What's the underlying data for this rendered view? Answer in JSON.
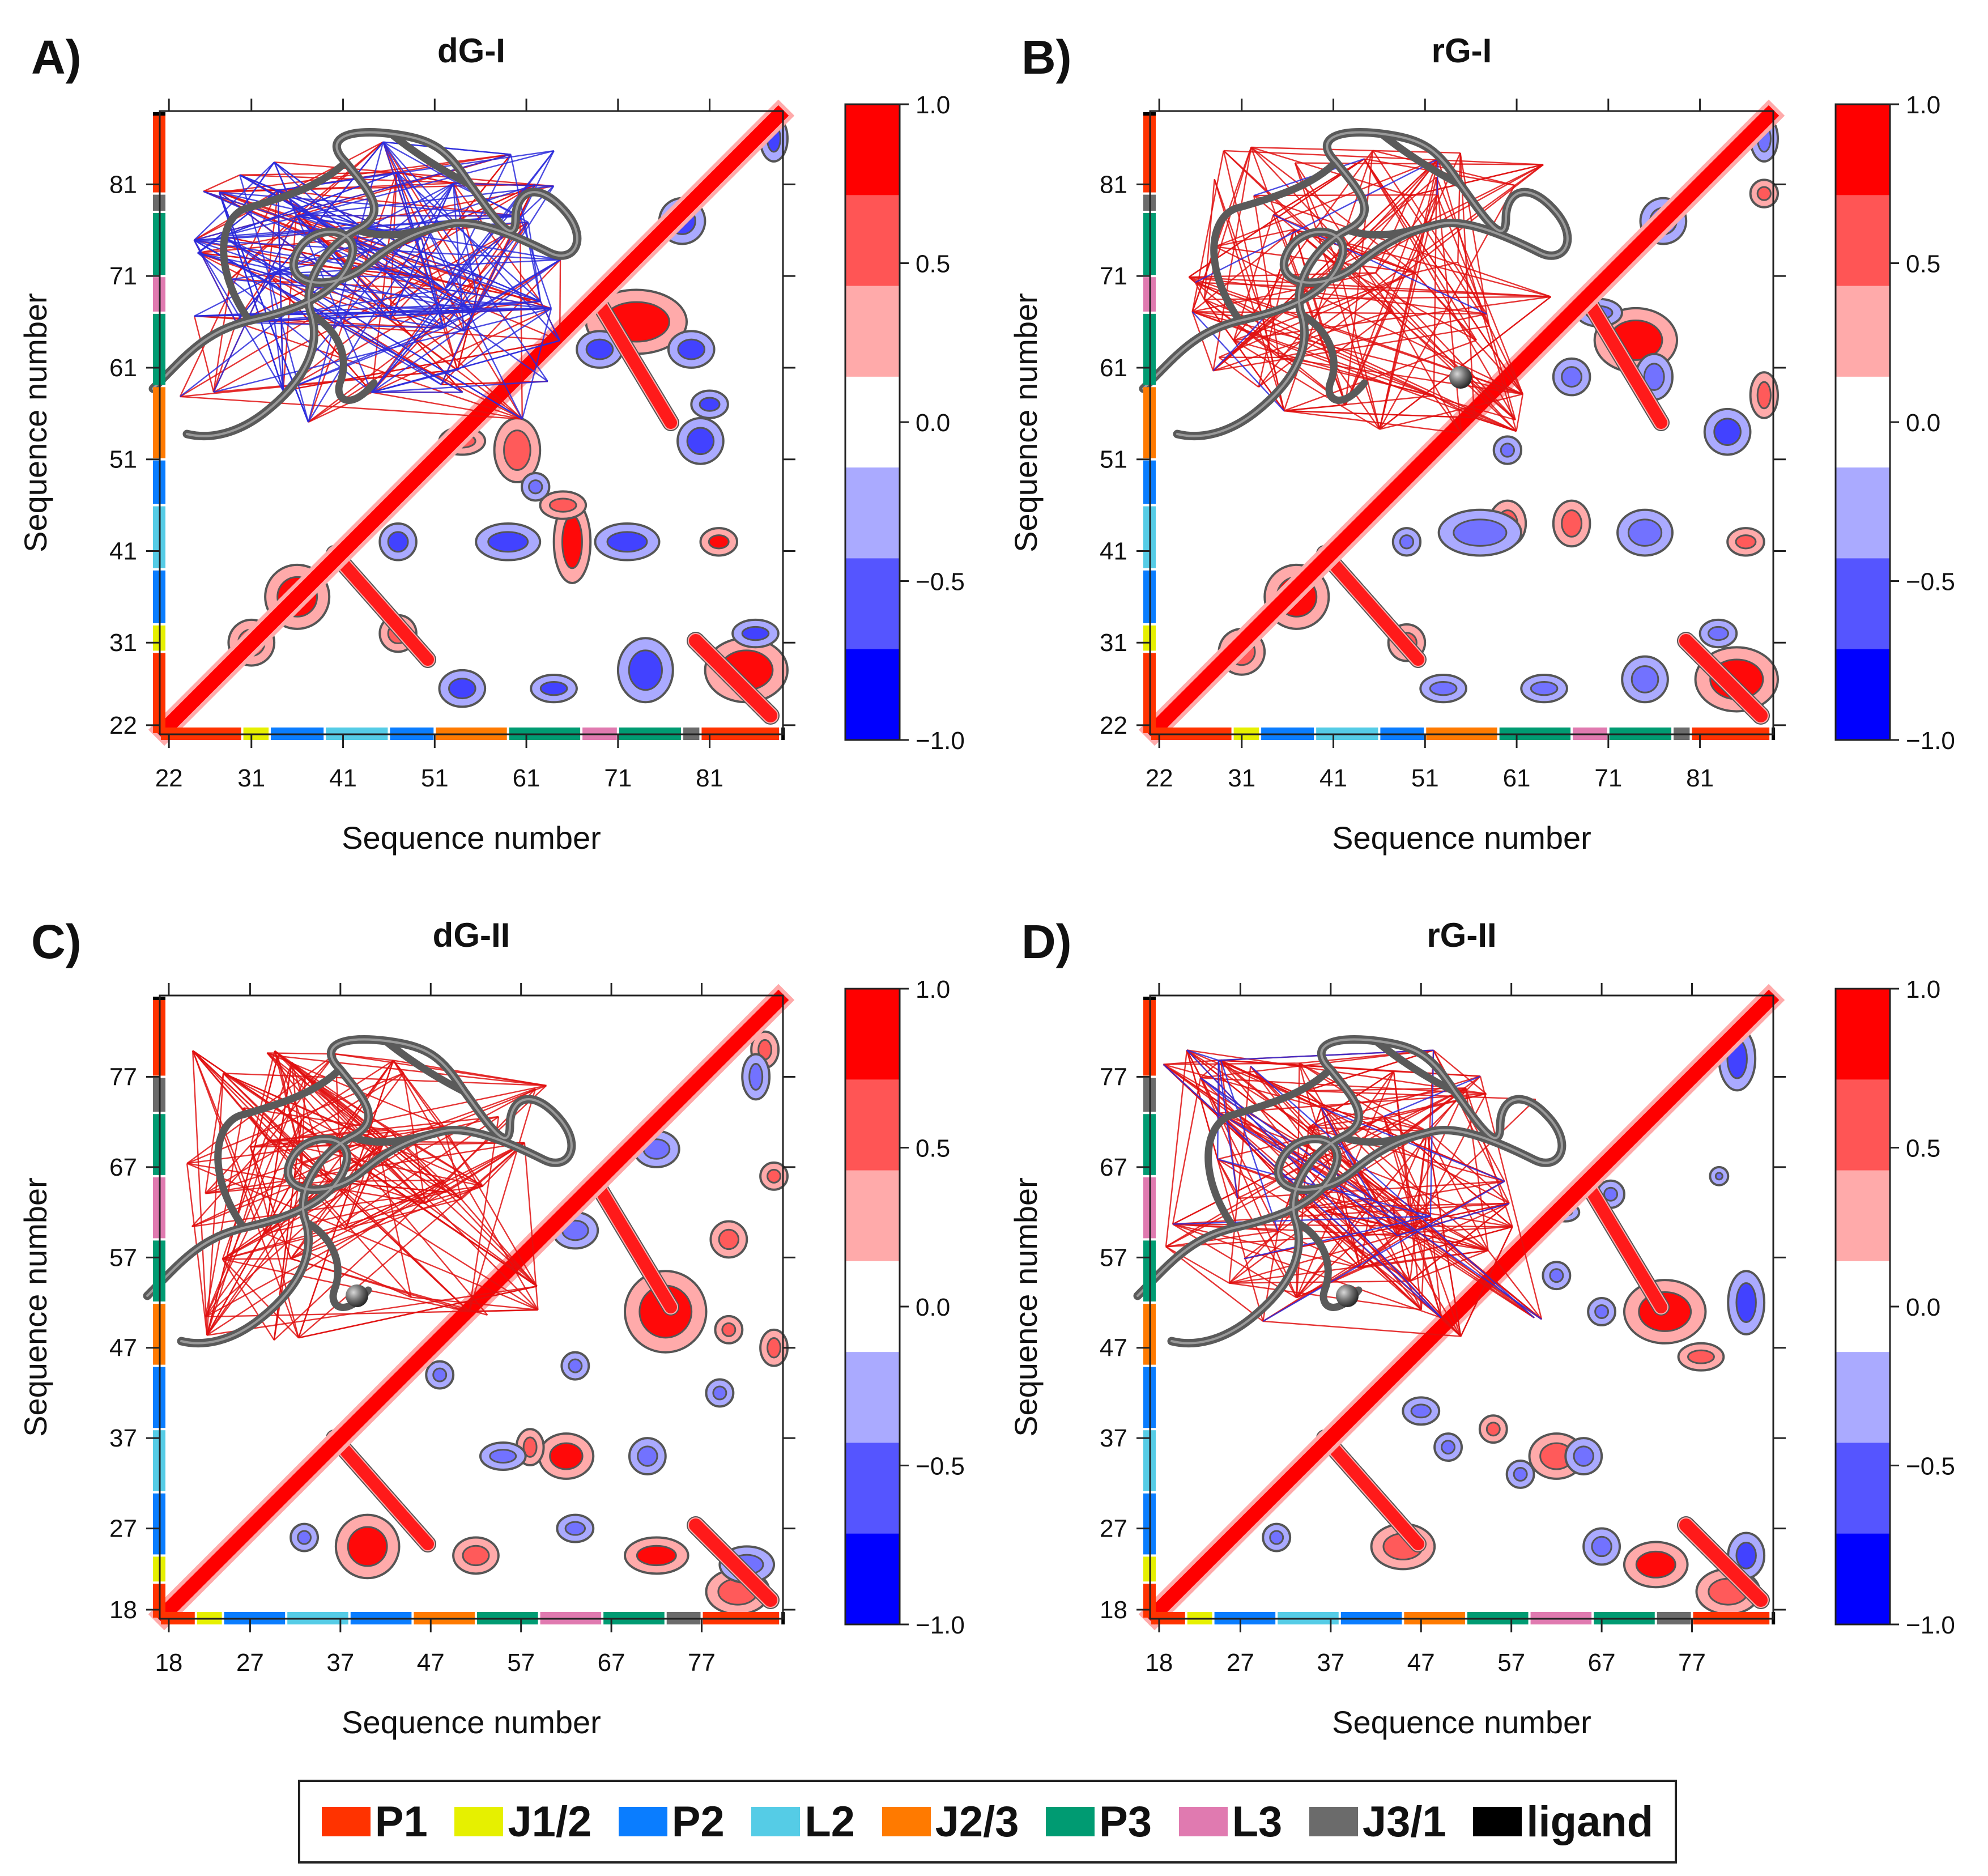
{
  "figure": {
    "legend": [
      {
        "label": "P1",
        "color": "#FF3300"
      },
      {
        "label": "J1/2",
        "color": "#E6F000"
      },
      {
        "label": "P2",
        "color": "#0A7DFF"
      },
      {
        "label": "L2",
        "color": "#55CCE6"
      },
      {
        "label": "J2/3",
        "color": "#FF7A00"
      },
      {
        "label": "P3",
        "color": "#009B72"
      },
      {
        "label": "L3",
        "color": "#E07AB0"
      },
      {
        "label": "J3/1",
        "color": "#6B6B6B"
      },
      {
        "label": "ligand",
        "color": "#000000"
      }
    ],
    "colorbar": {
      "ticks": [
        "1.0",
        "0.5",
        "0.0",
        "−0.5",
        "−1.0"
      ],
      "levels": [
        "#FF0000",
        "#FF5555",
        "#FFAAAA",
        "#FFFFFF",
        "#AAAAFF",
        "#5555FF",
        "#0000FF"
      ]
    },
    "colors": {
      "positive": "#FF2A2A",
      "negative": "#5A5AFF",
      "contour": "#555555",
      "diagonal": "#FF0000"
    }
  },
  "chart_data": [
    {
      "panel_label": "A)",
      "title": "dG-I",
      "type": "heatmap",
      "xlabel": "Sequence number",
      "ylabel": "Sequence number",
      "range": [
        21,
        89
      ],
      "ticks": [
        22,
        31,
        41,
        51,
        61,
        71,
        81
      ],
      "region_x": [
        "P1",
        "J1/2",
        "P2",
        "L2",
        "P2",
        "J2/3",
        "P3",
        "L3",
        "P3",
        "J3/1",
        "P1",
        "ligand"
      ],
      "region_y": [
        "P1",
        "J1/2",
        "P2",
        "L2",
        "P2",
        "J2/3",
        "P3",
        "L3",
        "P3",
        "J3/1",
        "P1",
        "ligand"
      ],
      "region_breaks": [
        21,
        30,
        33,
        39,
        46,
        51,
        59,
        67,
        71,
        78,
        80,
        88.7,
        89
      ],
      "structure_lines": {
        "red": 120,
        "blue": 150
      },
      "blobs": [
        {
          "x": 73,
          "y": 66,
          "rx": 5,
          "ry": 3,
          "v": 0.85
        },
        {
          "x": 85,
          "y": 28,
          "rx": 4,
          "ry": 3,
          "v": 0.85
        },
        {
          "x": 36,
          "y": 36,
          "rx": 3,
          "ry": 3,
          "v": 0.85
        },
        {
          "x": 31,
          "y": 31,
          "rx": 2,
          "ry": 2,
          "v": 0.7
        },
        {
          "x": 60,
          "y": 52,
          "rx": 2,
          "ry": 3,
          "v": 0.7
        },
        {
          "x": 47,
          "y": 32,
          "rx": 1.5,
          "ry": 1.5,
          "v": 0.7
        },
        {
          "x": 54,
          "y": 53,
          "rx": 2,
          "ry": 1,
          "v": 0.6
        },
        {
          "x": 82,
          "y": 42,
          "rx": 1.5,
          "ry": 1,
          "v": 0.85
        },
        {
          "x": 66,
          "y": 42,
          "rx": 1.5,
          "ry": 4,
          "v": 0.75
        },
        {
          "x": 65,
          "y": 46,
          "rx": 2,
          "ry": 1,
          "v": 0.6
        },
        {
          "x": 78,
          "y": 77,
          "rx": 2,
          "ry": 2,
          "v": -0.85
        },
        {
          "x": 69,
          "y": 63,
          "rx": 2,
          "ry": 1.5,
          "v": -0.85
        },
        {
          "x": 79,
          "y": 63,
          "rx": 2,
          "ry": 1.5,
          "v": -0.85
        },
        {
          "x": 81,
          "y": 57,
          "rx": 1.5,
          "ry": 1,
          "v": -0.85
        },
        {
          "x": 80,
          "y": 53,
          "rx": 2,
          "ry": 2,
          "v": -0.85
        },
        {
          "x": 72,
          "y": 42,
          "rx": 3,
          "ry": 1.5,
          "v": -0.85
        },
        {
          "x": 59,
          "y": 42,
          "rx": 3,
          "ry": 1.5,
          "v": -0.85
        },
        {
          "x": 54,
          "y": 26,
          "rx": 2,
          "ry": 1.5,
          "v": -0.85
        },
        {
          "x": 64,
          "y": 26,
          "rx": 2,
          "ry": 1,
          "v": -0.85
        },
        {
          "x": 74,
          "y": 28,
          "rx": 2.5,
          "ry": 3,
          "v": -0.85
        },
        {
          "x": 86,
          "y": 32,
          "rx": 2,
          "ry": 1,
          "v": -0.85
        },
        {
          "x": 47,
          "y": 42,
          "rx": 1.5,
          "ry": 1.5,
          "v": -0.85
        },
        {
          "x": 62,
          "y": 48,
          "rx": 1,
          "ry": 1,
          "v": -0.6
        },
        {
          "x": 88,
          "y": 86,
          "rx": 1,
          "ry": 2,
          "v": -0.85
        }
      ]
    },
    {
      "panel_label": "B)",
      "title": "rG-I",
      "type": "heatmap",
      "xlabel": "Sequence number",
      "ylabel": "Sequence number",
      "range": [
        21,
        89
      ],
      "ticks": [
        22,
        31,
        41,
        51,
        61,
        71,
        81
      ],
      "region_x": [
        "P1",
        "J1/2",
        "P2",
        "L2",
        "P2",
        "J2/3",
        "P3",
        "L3",
        "P3",
        "J3/1",
        "P1",
        "ligand"
      ],
      "region_y": [
        "P1",
        "J1/2",
        "P2",
        "L2",
        "P2",
        "J2/3",
        "P3",
        "L3",
        "P3",
        "J3/1",
        "P1",
        "ligand"
      ],
      "region_breaks": [
        21,
        30,
        33,
        39,
        46,
        51,
        59,
        67,
        71,
        78,
        80,
        88.7,
        89
      ],
      "structure_lines": {
        "red": 160,
        "blue": 6
      },
      "blobs": [
        {
          "x": 74,
          "y": 64,
          "rx": 4,
          "ry": 3,
          "v": 0.75
        },
        {
          "x": 85,
          "y": 27,
          "rx": 4,
          "ry": 3,
          "v": 0.75
        },
        {
          "x": 37,
          "y": 36,
          "rx": 3,
          "ry": 3,
          "v": 0.75
        },
        {
          "x": 31,
          "y": 30,
          "rx": 2,
          "ry": 2,
          "v": 0.6
        },
        {
          "x": 49,
          "y": 31,
          "rx": 1.5,
          "ry": 1.5,
          "v": 0.6
        },
        {
          "x": 88,
          "y": 58,
          "rx": 1,
          "ry": 2,
          "v": 0.6
        },
        {
          "x": 88,
          "y": 80,
          "rx": 1,
          "ry": 1,
          "v": 0.6
        },
        {
          "x": 60,
          "y": 44,
          "rx": 1.5,
          "ry": 2,
          "v": 0.6
        },
        {
          "x": 67,
          "y": 44,
          "rx": 1.5,
          "ry": 2,
          "v": 0.6
        },
        {
          "x": 86,
          "y": 42,
          "rx": 1.5,
          "ry": 1,
          "v": 0.6
        },
        {
          "x": 77,
          "y": 77,
          "rx": 2,
          "ry": 2,
          "v": -0.55
        },
        {
          "x": 70,
          "y": 67,
          "rx": 2,
          "ry": 1,
          "v": -0.5
        },
        {
          "x": 76,
          "y": 60,
          "rx": 1.5,
          "ry": 2,
          "v": -0.5
        },
        {
          "x": 84,
          "y": 54,
          "rx": 2,
          "ry": 2,
          "v": -0.85
        },
        {
          "x": 57,
          "y": 43,
          "rx": 4,
          "ry": 2,
          "v": -0.7
        },
        {
          "x": 75,
          "y": 43,
          "rx": 2.5,
          "ry": 2,
          "v": -0.7
        },
        {
          "x": 53,
          "y": 26,
          "rx": 2,
          "ry": 1,
          "v": -0.5
        },
        {
          "x": 64,
          "y": 26,
          "rx": 2,
          "ry": 1,
          "v": -0.5
        },
        {
          "x": 75,
          "y": 27,
          "rx": 2,
          "ry": 2,
          "v": -0.5
        },
        {
          "x": 83,
          "y": 32,
          "rx": 1.5,
          "ry": 1,
          "v": -0.5
        },
        {
          "x": 49,
          "y": 42,
          "rx": 1,
          "ry": 1,
          "v": -0.5
        },
        {
          "x": 67,
          "y": 60,
          "rx": 1.5,
          "ry": 1.5,
          "v": -0.5
        },
        {
          "x": 60,
          "y": 52,
          "rx": 1,
          "ry": 1,
          "v": -0.5
        },
        {
          "x": 88,
          "y": 86,
          "rx": 1,
          "ry": 2,
          "v": -0.5
        }
      ]
    },
    {
      "panel_label": "C)",
      "title": "dG-II",
      "type": "heatmap",
      "xlabel": "Sequence number",
      "ylabel": "Sequence number",
      "range": [
        17,
        86
      ],
      "ticks": [
        18,
        27,
        37,
        47,
        57,
        67,
        77
      ],
      "region_x": [
        "P1",
        "J1/2",
        "P2",
        "L2",
        "P2",
        "J2/3",
        "P3",
        "L3",
        "P3",
        "J3/1",
        "P1",
        "ligand"
      ],
      "region_y": [
        "P1",
        "J1/2",
        "P2",
        "L2",
        "P2",
        "J2/3",
        "P3",
        "L3",
        "P3",
        "J3/1",
        "P1",
        "ligand"
      ],
      "region_breaks": [
        17,
        21,
        24,
        31,
        38,
        45,
        52,
        59,
        66,
        73,
        77,
        85.7,
        86
      ],
      "structure_lines": {
        "red": 180,
        "blue": 0
      },
      "blobs": [
        {
          "x": 73,
          "y": 51,
          "rx": 4,
          "ry": 4,
          "v": 0.85
        },
        {
          "x": 72,
          "y": 24,
          "rx": 3,
          "ry": 1.5,
          "v": 0.85
        },
        {
          "x": 81,
          "y": 20,
          "rx": 3,
          "ry": 2,
          "v": 0.6
        },
        {
          "x": 40,
          "y": 25,
          "rx": 3,
          "ry": 3,
          "v": 0.75
        },
        {
          "x": 52,
          "y": 24,
          "rx": 2,
          "ry": 1.5,
          "v": 0.7
        },
        {
          "x": 62,
          "y": 35,
          "rx": 2.5,
          "ry": 2,
          "v": 0.75
        },
        {
          "x": 58,
          "y": 36,
          "rx": 1,
          "ry": 1.5,
          "v": 0.6
        },
        {
          "x": 80,
          "y": 59,
          "rx": 1.5,
          "ry": 1.5,
          "v": 0.6
        },
        {
          "x": 85,
          "y": 66,
          "rx": 1,
          "ry": 1,
          "v": 0.6
        },
        {
          "x": 85,
          "y": 47,
          "rx": 1,
          "ry": 1.5,
          "v": 0.6
        },
        {
          "x": 80,
          "y": 49,
          "rx": 1,
          "ry": 1,
          "v": 0.6
        },
        {
          "x": 84,
          "y": 80,
          "rx": 1,
          "ry": 1.5,
          "v": 0.6
        },
        {
          "x": 82,
          "y": 23,
          "rx": 2.5,
          "ry": 1.5,
          "v": -0.6
        },
        {
          "x": 72,
          "y": 69,
          "rx": 2,
          "ry": 1.5,
          "v": -0.5
        },
        {
          "x": 63,
          "y": 60,
          "rx": 2,
          "ry": 1.5,
          "v": -0.55
        },
        {
          "x": 83,
          "y": 77,
          "rx": 1,
          "ry": 2,
          "v": -0.5
        },
        {
          "x": 55,
          "y": 35,
          "rx": 2,
          "ry": 1,
          "v": -0.5
        },
        {
          "x": 71,
          "y": 35,
          "rx": 1.5,
          "ry": 1.5,
          "v": -0.5
        },
        {
          "x": 63,
          "y": 27,
          "rx": 1.5,
          "ry": 1,
          "v": -0.5
        },
        {
          "x": 48,
          "y": 44,
          "rx": 1,
          "ry": 1,
          "v": -0.5
        },
        {
          "x": 63,
          "y": 45,
          "rx": 1,
          "ry": 1,
          "v": -0.5
        },
        {
          "x": 79,
          "y": 42,
          "rx": 1,
          "ry": 1,
          "v": -0.5
        },
        {
          "x": 33,
          "y": 26,
          "rx": 1,
          "ry": 1,
          "v": -0.5
        }
      ]
    },
    {
      "panel_label": "D)",
      "title": "rG-II",
      "type": "heatmap",
      "xlabel": "Sequence number",
      "ylabel": "Sequence number",
      "range": [
        17,
        86
      ],
      "ticks": [
        18,
        27,
        37,
        47,
        57,
        67,
        77
      ],
      "region_x": [
        "P1",
        "J1/2",
        "P2",
        "L2",
        "P2",
        "J2/3",
        "P3",
        "L3",
        "P3",
        "J3/1",
        "P1",
        "ligand"
      ],
      "region_y": [
        "P1",
        "J1/2",
        "P2",
        "L2",
        "P2",
        "J2/3",
        "P3",
        "L3",
        "P3",
        "J3/1",
        "P1",
        "ligand"
      ],
      "region_breaks": [
        17,
        21,
        24,
        31,
        38,
        45,
        52,
        59,
        66,
        73,
        77,
        85.7,
        86
      ],
      "structure_lines": {
        "red": 200,
        "blue": 20
      },
      "blobs": [
        {
          "x": 74,
          "y": 51,
          "rx": 4,
          "ry": 3,
          "v": 0.75
        },
        {
          "x": 73,
          "y": 23,
          "rx": 3,
          "ry": 2,
          "v": 0.75
        },
        {
          "x": 81,
          "y": 20,
          "rx": 3,
          "ry": 2,
          "v": 0.6
        },
        {
          "x": 45,
          "y": 25,
          "rx": 3,
          "ry": 2,
          "v": 0.7
        },
        {
          "x": 62,
          "y": 35,
          "rx": 2.5,
          "ry": 2,
          "v": 0.7
        },
        {
          "x": 55,
          "y": 38,
          "rx": 1,
          "ry": 1,
          "v": 0.6
        },
        {
          "x": 78,
          "y": 46,
          "rx": 2,
          "ry": 1,
          "v": 0.6
        },
        {
          "x": 82,
          "y": 79,
          "rx": 1.5,
          "ry": 3,
          "v": -0.85
        },
        {
          "x": 83,
          "y": 52,
          "rx": 1.5,
          "ry": 3,
          "v": -0.85
        },
        {
          "x": 83,
          "y": 24,
          "rx": 1.5,
          "ry": 2,
          "v": -0.85
        },
        {
          "x": 65,
          "y": 35,
          "rx": 1.5,
          "ry": 1.5,
          "v": -0.5
        },
        {
          "x": 67,
          "y": 25,
          "rx": 1.5,
          "ry": 1.5,
          "v": -0.5
        },
        {
          "x": 47,
          "y": 40,
          "rx": 1.5,
          "ry": 1,
          "v": -0.5
        },
        {
          "x": 50,
          "y": 36,
          "rx": 1,
          "ry": 1,
          "v": -0.5
        },
        {
          "x": 67,
          "y": 51,
          "rx": 1,
          "ry": 1,
          "v": -0.5
        },
        {
          "x": 31,
          "y": 26,
          "rx": 1,
          "ry": 1,
          "v": -0.5
        },
        {
          "x": 58,
          "y": 33,
          "rx": 1,
          "ry": 1,
          "v": -0.5
        },
        {
          "x": 62,
          "y": 55,
          "rx": 1,
          "ry": 1,
          "v": -0.5
        },
        {
          "x": 68,
          "y": 64,
          "rx": 1,
          "ry": 1,
          "v": -0.5
        },
        {
          "x": 63,
          "y": 62,
          "rx": 1,
          "ry": 0.5,
          "v": -0.5
        },
        {
          "x": 80,
          "y": 66,
          "rx": 0.5,
          "ry": 0.5,
          "v": -0.5
        }
      ]
    }
  ]
}
